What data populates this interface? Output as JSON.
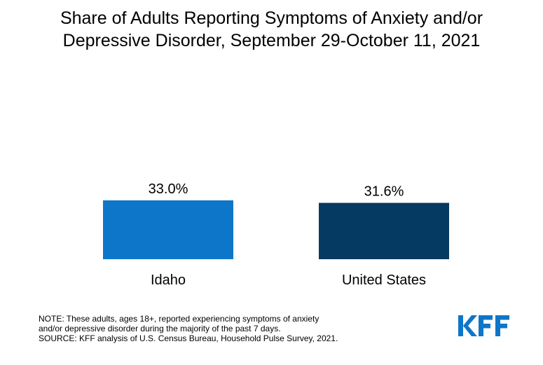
{
  "header": {
    "title_line1": "Share of Adults Reporting Symptoms of Anxiety and/or",
    "title_line2": "Depressive Disorder, September 29-October 11, 2021"
  },
  "chart_data": {
    "type": "bar",
    "title": "Share of Adults Reporting Symptoms of Anxiety and/or Depressive Disorder, September 29-October 11, 2021",
    "categories": [
      "Idaho",
      "United States"
    ],
    "values": [
      33.0,
      31.6
    ],
    "value_labels": [
      "33.0%",
      "31.6%"
    ],
    "colors": [
      "#0e76c9",
      "#053a63"
    ],
    "xlabel": "",
    "ylabel": "",
    "grid": false,
    "legend": "none"
  },
  "footer": {
    "note_line1": "NOTE: These adults, ages 18+, reported experiencing symptoms of anxiety",
    "note_line2": "and/or depressive disorder during the majority of the past 7 days.",
    "source": "SOURCE: KFF analysis of U.S. Census Bureau, Household Pulse Survey, 2021."
  },
  "logo": {
    "text": "KFF",
    "color": "#0e76c9"
  }
}
